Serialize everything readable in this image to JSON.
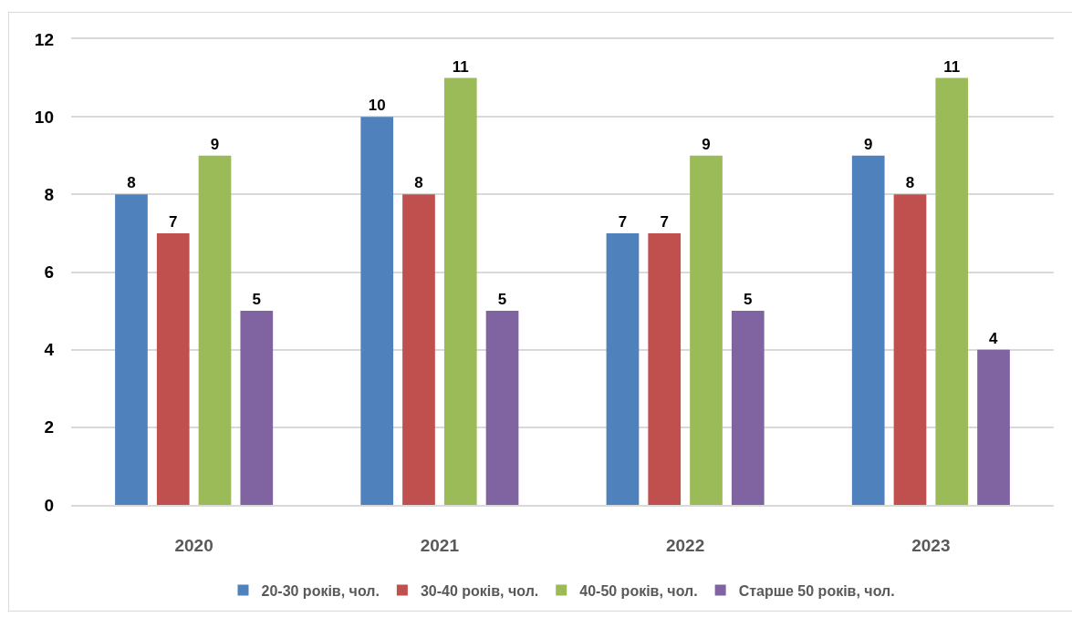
{
  "chart_data": {
    "type": "bar",
    "categories": [
      "2020",
      "2021",
      "2022",
      "2023"
    ],
    "series": [
      {
        "name": "20-30 років, чол.",
        "color": "#4f81bd",
        "values": [
          8,
          10,
          7,
          9
        ]
      },
      {
        "name": "30-40 років, чол.",
        "color": "#c0504d",
        "values": [
          7,
          8,
          7,
          8
        ]
      },
      {
        "name": "40-50 років, чол.",
        "color": "#9bbb59",
        "values": [
          9,
          11,
          9,
          11
        ]
      },
      {
        "name": "Старше 50 років, чол.",
        "color": "#8064a2",
        "values": [
          5,
          5,
          5,
          4
        ]
      }
    ],
    "ylim": [
      0,
      12
    ],
    "yticks": [
      0,
      2,
      4,
      6,
      8,
      10,
      12
    ],
    "grid": "y",
    "legend": "bottom",
    "data_labels": true
  }
}
